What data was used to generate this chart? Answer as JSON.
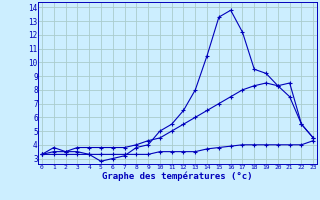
{
  "xlabel": "Graphe des températures (°c)",
  "bg_color": "#cceeff",
  "grid_color": "#aacccc",
  "line_color": "#0000bb",
  "hours": [
    0,
    1,
    2,
    3,
    4,
    5,
    6,
    7,
    8,
    9,
    10,
    11,
    12,
    13,
    14,
    15,
    16,
    17,
    18,
    19,
    20,
    21,
    22,
    23
  ],
  "temp_curve": [
    3.3,
    3.8,
    3.5,
    3.5,
    3.3,
    2.8,
    3.0,
    3.2,
    3.8,
    4.0,
    5.0,
    5.5,
    6.5,
    8.0,
    10.5,
    13.3,
    13.8,
    12.2,
    9.5,
    9.2,
    8.3,
    8.5,
    5.5,
    4.5
  ],
  "temp_min": [
    3.3,
    3.3,
    3.3,
    3.3,
    3.3,
    3.3,
    3.3,
    3.3,
    3.3,
    3.3,
    3.5,
    3.5,
    3.5,
    3.5,
    3.7,
    3.8,
    3.9,
    4.0,
    4.0,
    4.0,
    4.0,
    4.0,
    4.0,
    4.3
  ],
  "temp_max": [
    3.3,
    3.5,
    3.5,
    3.8,
    3.8,
    3.8,
    3.8,
    3.8,
    4.0,
    4.3,
    4.5,
    5.0,
    5.5,
    6.0,
    6.5,
    7.0,
    7.5,
    8.0,
    8.3,
    8.5,
    8.3,
    7.5,
    5.5,
    4.5
  ],
  "ylim": [
    2.6,
    14.4
  ],
  "yticks": [
    3,
    4,
    5,
    6,
    7,
    8,
    9,
    10,
    11,
    12,
    13,
    14
  ],
  "xlim": [
    -0.3,
    23.3
  ]
}
